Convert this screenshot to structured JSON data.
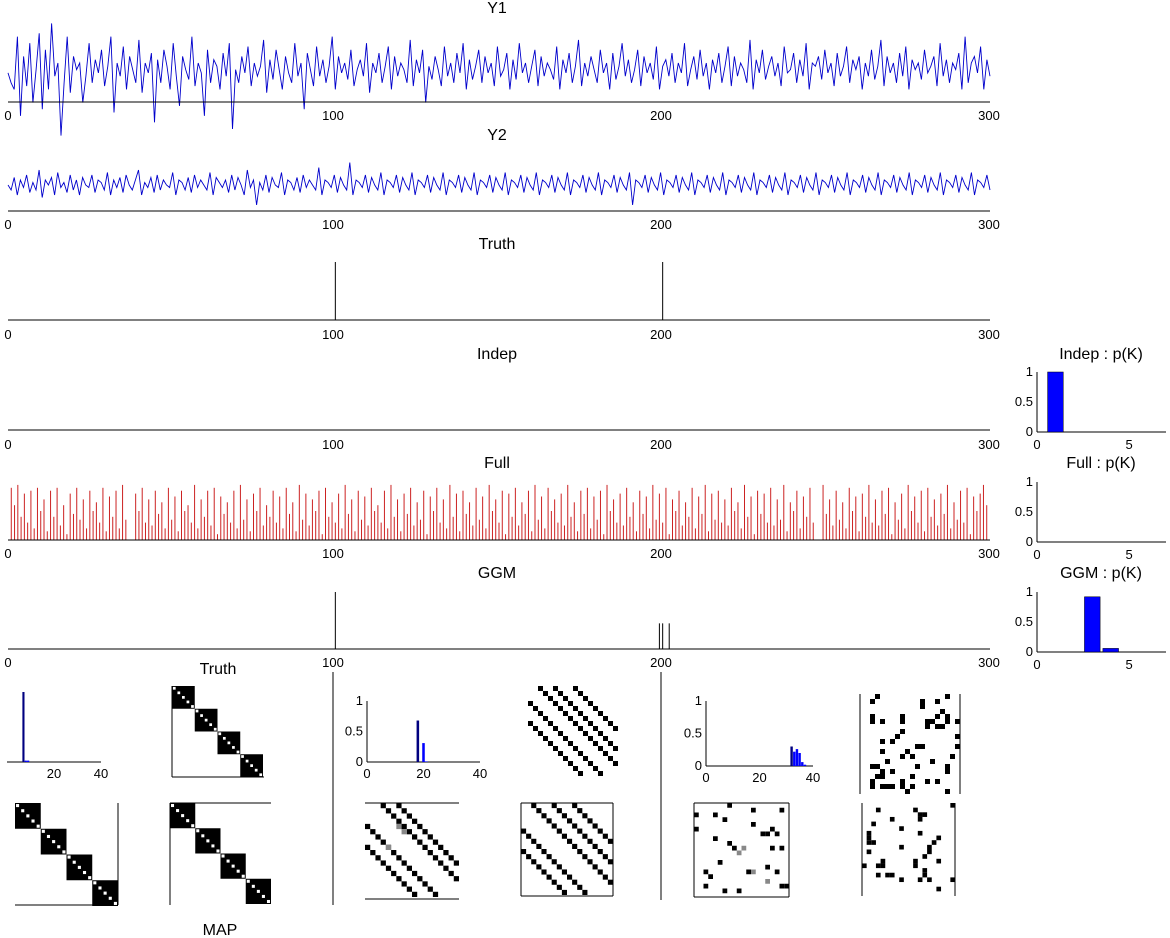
{
  "colors": {
    "signal": "#0000cc",
    "full_spikes": "#cc2222",
    "truth_spikes": "#000000",
    "bar_primary": "#0000ff",
    "bar_dark": "#000080"
  },
  "chart_data": [
    {
      "id": "y1",
      "type": "line",
      "title": "Y1",
      "x_range": [
        0,
        300
      ],
      "x_ticks": [
        "0",
        "100",
        "200",
        "300"
      ],
      "series": [
        {
          "values": [
            0.35,
            0.2,
            0.1,
            0.9,
            -0.3,
            0.6,
            0.15,
            0.8,
            -0.1,
            0.4,
            0.95,
            -0.2,
            0.7,
            0.1,
            1.1,
            0.3,
            0.5,
            -0.6,
            0.2,
            0.9,
            0.05,
            0.6,
            0.4,
            0.5,
            -0.1,
            0.3,
            0.8,
            0.2,
            0.55,
            0.35,
            0.7,
            0.15,
            0.45,
            0.9,
            -0.25,
            0.5,
            0.3,
            0.75,
            0.1,
            0.6,
            0.4,
            0.2,
            0.85,
            0.05,
            0.5,
            0.35,
            0.65,
            -0.4,
            0.55,
            0.2,
            0.7,
            0.45,
            0.1,
            0.8,
            0.3,
            -0.15,
            0.6,
            0.4,
            0.25,
            0.9,
            0.15,
            0.5,
            0.35,
            -0.3,
            0.7,
            0.2,
            0.55,
            0.45,
            0.1,
            0.65,
            0.3,
            0.8,
            -0.5,
            0.4,
            0.2,
            0.6,
            0.35,
            0.75,
            0.15,
            0.5,
            0.3,
            0.45,
            0.85,
            0.05,
            0.55,
            0.25,
            0.7,
            0.4,
            0.1,
            0.6,
            0.35,
            0.2,
            0.8,
            0.3,
            0.5,
            -0.2,
            0.65,
            0.4,
            0.15,
            0.75,
            0.3,
            0.55,
            0.2,
            0.45,
            0.9,
            0.1,
            0.6,
            0.35,
            0.5,
            0.25,
            0.7,
            0.15,
            0.4,
            0.55,
            0.3,
            0.8,
            0.05,
            0.5,
            0.35,
            0.65,
            0.2,
            0.45,
            0.75,
            0.1,
            0.6,
            0.3,
            0.5,
            0.4,
            0.2,
            0.85,
            0.15,
            0.55,
            0.35,
            0.7,
            -0.1,
            0.45,
            0.25,
            0.6,
            0.4,
            0.15,
            0.75,
            0.3,
            0.5,
            0.2,
            0.65,
            0.35,
            0.8,
            0.1,
            0.55,
            0.25,
            0.45,
            0.7,
            0.2,
            0.6,
            0.35,
            0.5,
            0.15,
            0.75,
            0.3,
            0.4,
            0.65,
            0.1,
            0.55,
            0.25,
            0.8,
            0.35,
            0.5,
            0.2,
            0.45,
            0.7,
            0.15,
            0.6,
            0.3,
            0.5,
            0.4,
            0.25,
            0.75,
            0.1,
            0.55,
            0.35,
            0.65,
            0.2,
            0.45,
            0.85,
            0.15,
            0.5,
            0.3,
            0.6,
            0.4,
            0.2,
            0.7,
            0.35,
            0.5,
            0.1,
            0.65,
            0.25,
            0.45,
            0.8,
            0.3,
            0.55,
            0.2,
            0.4,
            0.7,
            0.15,
            0.6,
            0.35,
            0.5,
            0.25,
            0.75,
            0.1,
            0.45,
            0.55,
            0.3,
            0.65,
            0.2,
            0.5,
            0.35,
            0.8,
            0.15,
            0.4,
            0.6,
            0.25,
            0.7,
            0.3,
            0.5,
            0.1,
            0.55,
            0.35,
            0.65,
            0.2,
            0.45,
            0.75,
            0.15,
            0.6,
            0.3,
            0.5,
            0.4,
            0.2,
            0.85,
            0.1,
            0.55,
            0.35,
            0.7,
            0.25,
            0.45,
            0.6,
            0.3,
            0.5,
            0.15,
            0.75,
            0.35,
            0.4,
            0.65,
            0.2,
            0.55,
            0.3,
            0.8,
            0.1,
            0.5,
            0.45,
            0.6,
            0.25,
            0.7,
            0.35,
            0.5,
            0.15,
            0.65,
            0.3,
            0.45,
            0.75,
            0.2,
            0.55,
            0.4,
            0.6,
            0.1,
            0.5,
            0.3,
            0.7,
            0.25,
            0.45,
            0.85,
            0.15,
            0.6,
            0.35,
            0.5,
            0.2,
            0.65,
            0.3,
            0.75,
            0.1,
            0.55,
            0.4,
            0.5,
            0.25,
            0.7,
            0.35,
            0.45,
            0.6,
            0.15,
            0.8,
            0.3,
            0.55,
            0.2,
            0.5,
            0.4,
            0.65,
            0.1,
            0.9,
            0.2,
            0.5,
            0.6,
            0.35,
            0.75,
            0.1,
            0.55,
            0.3
          ]
        }
      ]
    },
    {
      "id": "y2",
      "type": "line",
      "title": "Y2",
      "x_range": [
        0,
        300
      ],
      "x_ticks": [
        "0",
        "100",
        "200",
        "300"
      ],
      "series": [
        {
          "values": [
            0.4,
            0.3,
            0.55,
            0.2,
            0.5,
            0.35,
            0.6,
            0.25,
            0.45,
            0.3,
            0.7,
            0.15,
            0.5,
            0.4,
            0.55,
            0.2,
            0.65,
            0.35,
            0.45,
            0.25,
            0.6,
            0.3,
            0.5,
            0.2,
            0.55,
            0.4,
            0.35,
            0.6,
            0.25,
            0.5,
            0.45,
            0.3,
            0.65,
            0.2,
            0.5,
            0.35,
            0.55,
            0.25,
            0.6,
            0.4,
            0.3,
            0.5,
            0.7,
            0.2,
            0.45,
            0.35,
            0.55,
            0.25,
            0.6,
            0.3,
            0.5,
            0.4,
            0.35,
            0.65,
            0.2,
            0.5,
            0.45,
            0.3,
            0.55,
            0.25,
            0.6,
            0.35,
            0.5,
            0.4,
            0.3,
            0.65,
            0.2,
            0.55,
            0.45,
            0.35,
            0.5,
            0.25,
            0.6,
            0.3,
            0.55,
            0.4,
            0.2,
            0.7,
            0.35,
            0.5,
            0.0,
            0.45,
            0.3,
            0.6,
            0.25,
            0.55,
            0.4,
            0.35,
            0.65,
            0.2,
            0.5,
            0.45,
            0.3,
            0.55,
            0.25,
            0.6,
            0.35,
            0.5,
            0.4,
            0.3,
            0.75,
            0.2,
            0.5,
            0.45,
            0.35,
            0.6,
            0.25,
            0.55,
            0.4,
            0.3,
            0.85,
            0.2,
            0.5,
            0.45,
            0.35,
            0.6,
            0.25,
            0.55,
            0.4,
            0.3,
            0.65,
            0.2,
            0.5,
            0.45,
            0.35,
            0.6,
            0.25,
            0.55,
            0.4,
            0.3,
            0.65,
            0.2,
            0.5,
            0.45,
            0.35,
            0.6,
            0.25,
            0.55,
            0.4,
            0.3,
            0.65,
            0.2,
            0.5,
            0.45,
            0.35,
            0.6,
            0.25,
            0.55,
            0.4,
            0.3,
            0.65,
            0.2,
            0.5,
            0.45,
            0.35,
            0.6,
            0.25,
            0.55,
            0.4,
            0.3,
            0.65,
            0.2,
            0.5,
            0.45,
            0.35,
            0.6,
            0.25,
            0.55,
            0.4,
            0.3,
            0.65,
            0.2,
            0.5,
            0.45,
            0.35,
            0.6,
            0.25,
            0.55,
            0.4,
            0.3,
            0.65,
            0.2,
            0.5,
            0.45,
            0.35,
            0.6,
            0.25,
            0.55,
            0.4,
            0.3,
            0.65,
            0.2,
            0.5,
            0.45,
            0.35,
            0.6,
            0.25,
            0.55,
            0.4,
            0.3,
            0.65,
            0.0,
            0.5,
            0.45,
            0.35,
            0.6,
            0.25,
            0.55,
            0.4,
            0.3,
            0.65,
            0.2,
            0.5,
            0.45,
            0.35,
            0.6,
            0.25,
            0.55,
            0.4,
            0.3,
            0.65,
            0.2,
            0.5,
            0.45,
            0.35,
            0.6,
            0.25,
            0.55,
            0.4,
            0.3,
            0.65,
            0.2,
            0.5,
            0.45,
            0.35,
            0.6,
            0.25,
            0.55,
            0.4,
            0.3,
            0.65,
            0.2,
            0.5,
            0.45,
            0.35,
            0.6,
            0.25,
            0.55,
            0.4,
            0.3,
            0.65,
            0.2,
            0.5,
            0.45,
            0.35,
            0.6,
            0.25,
            0.55,
            0.4,
            0.3,
            0.65,
            0.2,
            0.5,
            0.45,
            0.35,
            0.6,
            0.25,
            0.55,
            0.4,
            0.3,
            0.65,
            0.2,
            0.5,
            0.45,
            0.35,
            0.6,
            0.25,
            0.55,
            0.4,
            0.3,
            0.65,
            0.2,
            0.5,
            0.45,
            0.35,
            0.6,
            0.25,
            0.55,
            0.4,
            0.3,
            0.65,
            0.2,
            0.5,
            0.45,
            0.35,
            0.6,
            0.25,
            0.55,
            0.4,
            0.3,
            0.65,
            0.2,
            0.5,
            0.45,
            0.35,
            0.6,
            0.25,
            0.55,
            0.4,
            0.3,
            0.65,
            0.2,
            0.5,
            0.45,
            0.35,
            0.6,
            0.3
          ]
        }
      ]
    },
    {
      "id": "truth",
      "type": "bar",
      "title": "Truth",
      "x_range": [
        0,
        300
      ],
      "x_ticks": [
        "0",
        "100",
        "200",
        "300"
      ],
      "spikes": [
        {
          "x": 100,
          "y": 1.0
        },
        {
          "x": 200,
          "y": 1.0
        }
      ]
    },
    {
      "id": "indep",
      "type": "bar",
      "title": "Indep",
      "x_range": [
        0,
        300
      ],
      "x_ticks": [
        "0",
        "100",
        "200",
        "300"
      ],
      "spikes": []
    },
    {
      "id": "full",
      "type": "bar",
      "title": "Full",
      "x_range": [
        0,
        300
      ],
      "x_ticks": [
        "0",
        "100",
        "200",
        "300"
      ],
      "spikes_every": 1,
      "spike_heights": [
        0.9,
        0.6,
        0.95,
        0.4,
        0.8,
        0.3,
        0.85,
        0.2,
        0.9,
        0.5,
        0.7,
        0.15,
        0.85,
        0.4,
        0.9,
        0.25,
        0.6,
        0.1,
        0.8,
        0.45,
        0.9,
        0.35,
        0.7,
        0.2,
        0.85,
        0.5,
        0.65,
        0.3,
        0.9,
        0.15,
        0.75,
        0.4,
        0.85,
        0.2,
        0.95,
        0.35,
        0.6,
        0.1,
        0.8,
        0.5,
        0.9,
        0.3,
        0.7,
        0.25,
        0.85,
        0.45,
        0.65,
        0.2,
        0.9,
        0.35,
        0.75,
        0.15,
        0.85,
        0.5,
        0.6,
        0.3,
        0.95,
        0.2,
        0.7,
        0.4,
        0.85,
        0.25,
        0.9,
        0.1,
        0.75,
        0.45,
        0.65,
        0.3,
        0.85,
        0.2,
        0.95,
        0.35,
        0.7,
        0.15,
        0.8,
        0.5,
        0.9,
        0.25,
        0.6,
        0.4,
        0.85,
        0.3,
        0.75,
        0.2,
        0.9,
        0.45,
        0.65,
        0.15,
        0.95,
        0.35,
        0.8,
        0.25,
        0.7,
        0.5,
        0.85,
        0.1,
        0.9,
        0.4,
        0.65,
        0.3,
        0.8,
        0.2,
        0.95,
        0.45,
        0.7,
        0.15,
        0.85,
        0.35,
        0.75,
        0.25,
        0.9,
        0.5,
        0.6,
        0.3,
        0.85,
        0.2,
        0.95,
        0.4,
        0.7,
        0.15,
        0.8,
        0.45,
        0.9,
        0.25,
        0.65,
        0.35,
        0.85,
        0.1,
        0.75,
        0.5,
        0.9,
        0.3,
        0.7,
        0.2,
        0.95,
        0.4,
        0.8,
        0.15,
        0.85,
        0.45,
        0.65,
        0.25,
        0.9,
        0.35,
        0.75,
        0.2,
        0.95,
        0.5,
        0.7,
        0.3,
        0.85,
        0.1,
        0.8,
        0.4,
        0.9,
        0.25,
        0.65,
        0.45,
        0.85,
        0.15,
        0.95,
        0.35,
        0.75,
        0.2,
        0.9,
        0.5,
        0.7,
        0.3,
        0.8,
        0.25,
        0.95,
        0.4,
        0.65,
        0.15,
        0.85,
        0.45,
        0.9,
        0.2,
        0.75,
        0.35,
        0.85,
        0.1,
        0.95,
        0.5,
        0.7,
        0.3,
        0.8,
        0.25,
        0.9,
        0.4,
        0.65,
        0.15,
        0.85,
        0.45,
        0.75,
        0.2,
        0.95,
        0.35,
        0.8,
        0.3,
        0.9,
        0.1,
        0.7,
        0.5,
        0.85,
        0.25,
        0.65,
        0.4,
        0.9,
        0.2,
        0.75,
        0.45,
        0.95,
        0.15,
        0.8,
        0.35,
        0.85,
        0.3,
        0.7,
        0.25,
        0.9,
        0.5,
        0.65,
        0.2,
        0.95,
        0.4,
        0.75,
        0.1,
        0.85,
        0.45,
        0.8,
        0.3,
        0.9,
        0.25,
        0.7,
        0.35,
        0.95,
        0.15,
        0.65,
        0.5,
        0.85,
        0.2,
        0.75,
        0.4,
        0.9,
        0.3,
        0.8,
        0.1,
        0.95,
        0.45,
        0.7,
        0.25,
        0.85,
        0.35,
        0.65,
        0.2,
        0.9,
        0.5,
        0.75,
        0.15,
        0.8,
        0.4,
        0.95,
        0.3,
        0.7,
        0.25,
        0.85,
        0.45,
        0.9,
        0.1,
        0.65,
        0.35,
        0.8,
        0.2,
        0.95,
        0.5,
        0.75,
        0.3,
        0.85,
        0.15,
        0.9,
        0.4,
        0.7,
        0.25,
        0.8,
        0.45,
        0.95,
        0.2,
        0.65,
        0.35,
        0.85,
        0.3,
        0.9,
        0.1,
        0.75,
        0.5,
        0.8,
        0.95,
        0.6
      ]
    },
    {
      "id": "ggm",
      "type": "bar",
      "title": "GGM",
      "x_range": [
        0,
        300
      ],
      "x_ticks": [
        "0",
        "100",
        "200",
        "300"
      ],
      "spikes": [
        {
          "x": 100,
          "y": 1.0
        },
        {
          "x": 199,
          "y": 0.45
        },
        {
          "x": 200,
          "y": 0.45
        },
        {
          "x": 202,
          "y": 0.45
        }
      ]
    },
    {
      "id": "indep_pk",
      "type": "bar",
      "title": "Indep : p(K)",
      "x_range": [
        0,
        7
      ],
      "x_ticks": [
        "0",
        "5"
      ],
      "y_range": [
        0,
        1
      ],
      "y_ticks": [
        "0",
        "0.5",
        "1"
      ],
      "categories": [
        1
      ],
      "values": [
        1.0
      ]
    },
    {
      "id": "full_pk",
      "type": "bar",
      "title": "Full : p(K)",
      "x_range": [
        0,
        7
      ],
      "x_ticks": [
        "0",
        "5"
      ],
      "y_range": [
        0,
        1
      ],
      "y_ticks": [
        "0",
        "0.5",
        "1"
      ],
      "categories": [],
      "values": []
    },
    {
      "id": "ggm_pk",
      "type": "bar",
      "title": "GGM : p(K)",
      "x_range": [
        0,
        7
      ],
      "x_ticks": [
        "0",
        "5"
      ],
      "y_range": [
        0,
        1
      ],
      "y_ticks": [
        "0",
        "0.5",
        "1"
      ],
      "categories": [
        3,
        4
      ],
      "values": [
        0.92,
        0.06
      ]
    },
    {
      "id": "hist_left",
      "type": "bar",
      "x_range": [
        0,
        40
      ],
      "x_ticks": [
        "20",
        "40"
      ],
      "categories": [
        7,
        8,
        9
      ],
      "values": [
        1.0,
        0.02,
        0.02
      ]
    },
    {
      "id": "hist_mid",
      "type": "bar",
      "x_range": [
        0,
        40
      ],
      "x_ticks": [
        "0",
        "20",
        "40"
      ],
      "y_range": [
        0,
        1
      ],
      "y_ticks": [
        "0",
        "0.5",
        "1"
      ],
      "categories": [
        18,
        20,
        21
      ],
      "values": [
        0.68,
        0.31,
        0.01
      ]
    },
    {
      "id": "hist_right",
      "type": "bar",
      "x_range": [
        0,
        40
      ],
      "x_ticks": [
        "0",
        "20",
        "40"
      ],
      "y_range": [
        0,
        1
      ],
      "y_ticks": [
        "0",
        "0.5",
        "1"
      ],
      "categories": [
        32,
        33,
        34,
        35,
        36,
        37
      ],
      "values": [
        0.3,
        0.22,
        0.26,
        0.2,
        0.06,
        0.02
      ]
    }
  ],
  "matrix_titles": {
    "truth": "Truth",
    "map": "MAP"
  }
}
